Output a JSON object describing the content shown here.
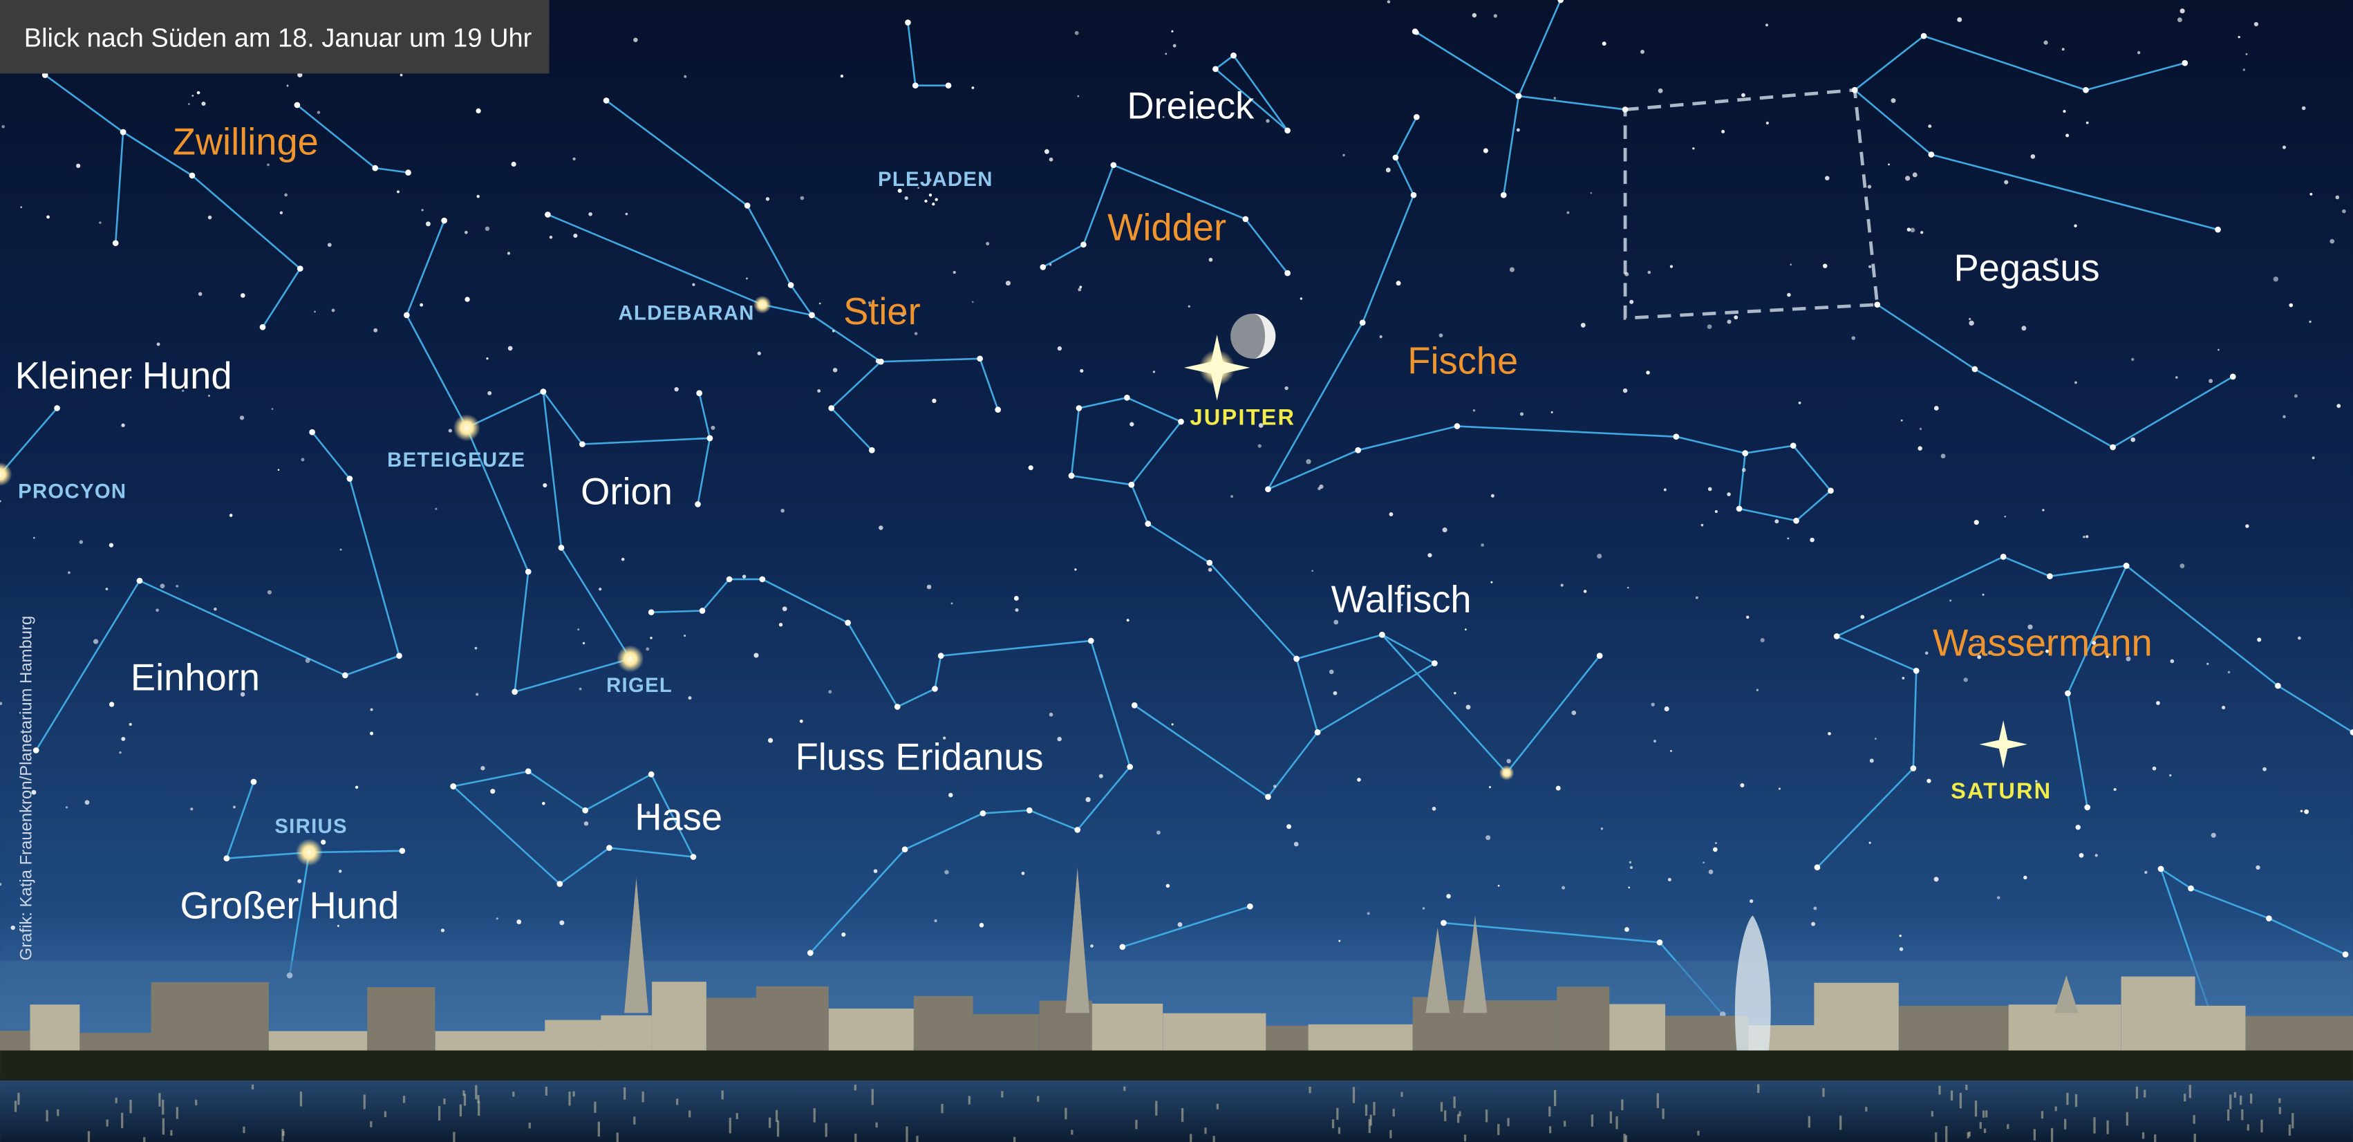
{
  "header": {
    "title": "Blick nach Süden am 18. Januar um 19 Uhr"
  },
  "credit": "Grafik: Katja Frauenkron/Planetarium Hamburg",
  "zodiac_constellations": [
    "Zwillinge",
    "Widder",
    "Stier",
    "Fische",
    "Wassermann"
  ],
  "constellations": [
    "Dreieck",
    "Pegasus",
    "Kleiner Hund",
    "Orion",
    "Walfisch",
    "Einhorn",
    "Fluss Eridanus",
    "Hase",
    "Großer Hund"
  ],
  "stars": [
    "PLEJADEN",
    "ALDEBARAN",
    "BETEIGEUZE",
    "PROCYON",
    "RIGEL",
    "SIRIUS"
  ],
  "planets": [
    "JUPITER",
    "SATURN"
  ]
}
